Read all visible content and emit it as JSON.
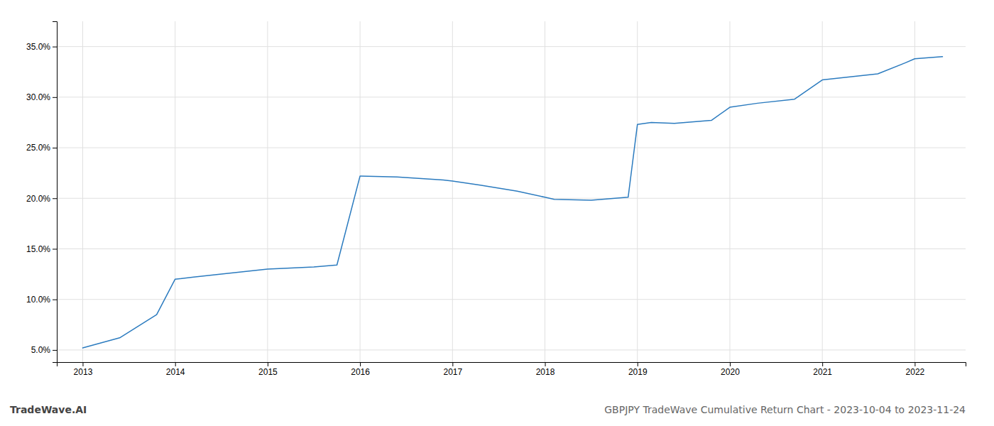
{
  "chart_data": {
    "type": "line",
    "title": "GBPJPY TradeWave Cumulative Return Chart - 2023-10-04 to 2023-11-24",
    "annotations": [
      "TradeWave.AI"
    ],
    "x": [
      2013.0,
      2013.4,
      2013.8,
      2014.0,
      2014.2,
      2014.5,
      2015.0,
      2015.5,
      2015.75,
      2016.0,
      2016.4,
      2016.9,
      2017.0,
      2017.3,
      2017.7,
      2018.0,
      2018.1,
      2018.5,
      2018.9,
      2019.0,
      2019.15,
      2019.4,
      2019.8,
      2020.0,
      2020.3,
      2020.7,
      2021.0,
      2021.3,
      2021.6,
      2021.9,
      2022.0,
      2022.3
    ],
    "values": [
      5.2,
      6.2,
      8.5,
      12.0,
      12.2,
      12.5,
      13.0,
      13.2,
      13.4,
      22.2,
      22.1,
      21.8,
      21.7,
      21.3,
      20.7,
      20.1,
      19.9,
      19.8,
      20.1,
      27.3,
      27.5,
      27.4,
      27.7,
      29.0,
      29.4,
      29.8,
      31.7,
      32.0,
      32.3,
      33.4,
      33.8,
      34.0
    ],
    "color": "#2b7bbf",
    "xlim": [
      2012.72,
      2022.55
    ],
    "xticks": [
      2013,
      2014,
      2015,
      2016,
      2017,
      2018,
      2019,
      2020,
      2021,
      2022
    ],
    "ylim": [
      3.8,
      37.5
    ],
    "yticks": [
      {
        "value": 5.0,
        "label": "5.0%"
      },
      {
        "value": 10.0,
        "label": "10.0%"
      },
      {
        "value": 15.0,
        "label": "15.0%"
      },
      {
        "value": 20.0,
        "label": "20.0%"
      },
      {
        "value": 25.0,
        "label": "25.0%"
      },
      {
        "value": 30.0,
        "label": "30.0%"
      },
      {
        "value": 35.0,
        "label": "35.0%"
      }
    ],
    "grid": true
  }
}
